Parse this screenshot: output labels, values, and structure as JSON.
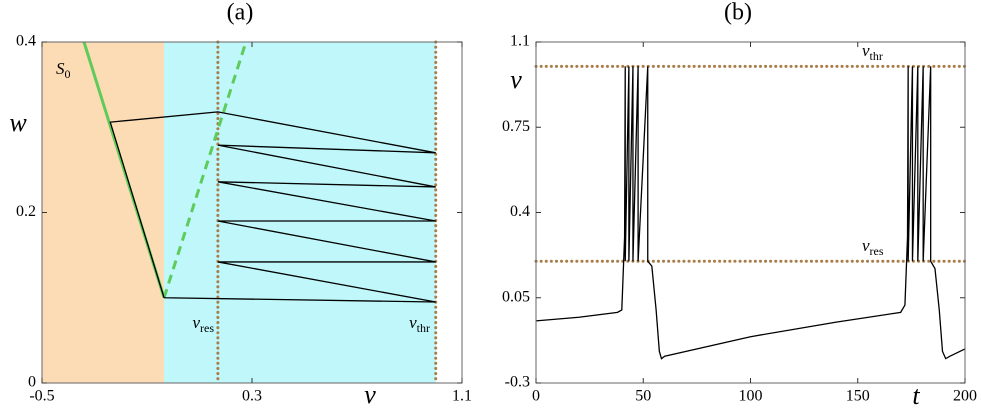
{
  "chart_data": [
    {
      "type": "line",
      "title": "(a)",
      "x_label": "v",
      "y_label": "w",
      "xlim": [
        -0.5,
        1.1
      ],
      "ylim": [
        0,
        0.4
      ],
      "xticks": [
        -0.5,
        0.3,
        1.1
      ],
      "yticks": [
        0,
        0.2,
        0.4
      ],
      "regions": [
        {
          "xlim": [
            -0.5,
            -0.035
          ],
          "color": "#fcdcb5"
        },
        {
          "xlim": [
            -0.035,
            1.0
          ],
          "color": "#bff7fa"
        }
      ],
      "vlines": {
        "values": [
          0.17,
          1.0
        ],
        "color": "#a97d47"
      },
      "series": [
        {
          "color": "#5fcb5a",
          "dashed": false,
          "x": [
            -0.34,
            -0.035
          ],
          "y": [
            0.4,
            0.1
          ]
        },
        {
          "color": "#5fcb5a",
          "dashed": true,
          "x": [
            -0.035,
            0.277
          ],
          "y": [
            0.1,
            0.4
          ]
        },
        {
          "color": "#000000",
          "dashed": false,
          "x": [
            -0.035,
            1.0,
            0.17,
            1.0,
            0.17,
            1.0,
            0.17,
            1.0,
            0.17,
            1.0,
            0.17,
            -0.24,
            -0.035
          ],
          "y": [
            0.1,
            0.095,
            0.142,
            0.142,
            0.19,
            0.19,
            0.236,
            0.23,
            0.279,
            0.27,
            0.318,
            0.306,
            0.1
          ]
        }
      ],
      "annotations": [
        {
          "text": "S",
          "sub": "0"
        },
        {
          "text": "v",
          "sub": "res"
        },
        {
          "text": "v",
          "sub": "thr"
        }
      ]
    },
    {
      "type": "line",
      "title": "(b)",
      "x_label": "t",
      "y_label": "v",
      "xlim": [
        0,
        200
      ],
      "ylim": [
        -0.3,
        1.1
      ],
      "xticks": [
        0,
        50,
        100,
        150,
        200
      ],
      "yticks": [
        -0.3,
        0.05,
        0.4,
        0.75,
        1.1
      ],
      "hlines": {
        "values": [
          1.0,
          0.2
        ],
        "color": "#a97d47"
      },
      "series": [
        {
          "color": "#000000",
          "dashed": false,
          "x": [
            0,
            20,
            38,
            40,
            41.3,
            41.6,
            41.6,
            43.3,
            43.3,
            45.2,
            45.2,
            47.6,
            47.6,
            52.1,
            52.1,
            54,
            56,
            57.5,
            58.5,
            60,
            100,
            140,
            170,
            172,
            173.2,
            173.5,
            173.5,
            175.5,
            175.5,
            178,
            178,
            180.5,
            180.5,
            184,
            184,
            186,
            188,
            189.5,
            191,
            193,
            200
          ],
          "y": [
            -0.045,
            -0.03,
            -0.01,
            0.0,
            0.3,
            1.0,
            0.2,
            1.0,
            0.2,
            1.0,
            0.2,
            1.0,
            0.2,
            1.0,
            0.2,
            0.18,
            0.0,
            -0.17,
            -0.2,
            -0.19,
            -0.11,
            -0.05,
            -0.01,
            0.02,
            0.3,
            1.0,
            0.2,
            1.0,
            0.2,
            1.0,
            0.2,
            1.0,
            0.2,
            1.0,
            0.2,
            0.17,
            0.0,
            -0.17,
            -0.2,
            -0.19,
            -0.16
          ]
        }
      ],
      "annotations": [
        {
          "text": "v",
          "sub": "thr"
        },
        {
          "text": "v",
          "sub": "res"
        }
      ]
    }
  ]
}
